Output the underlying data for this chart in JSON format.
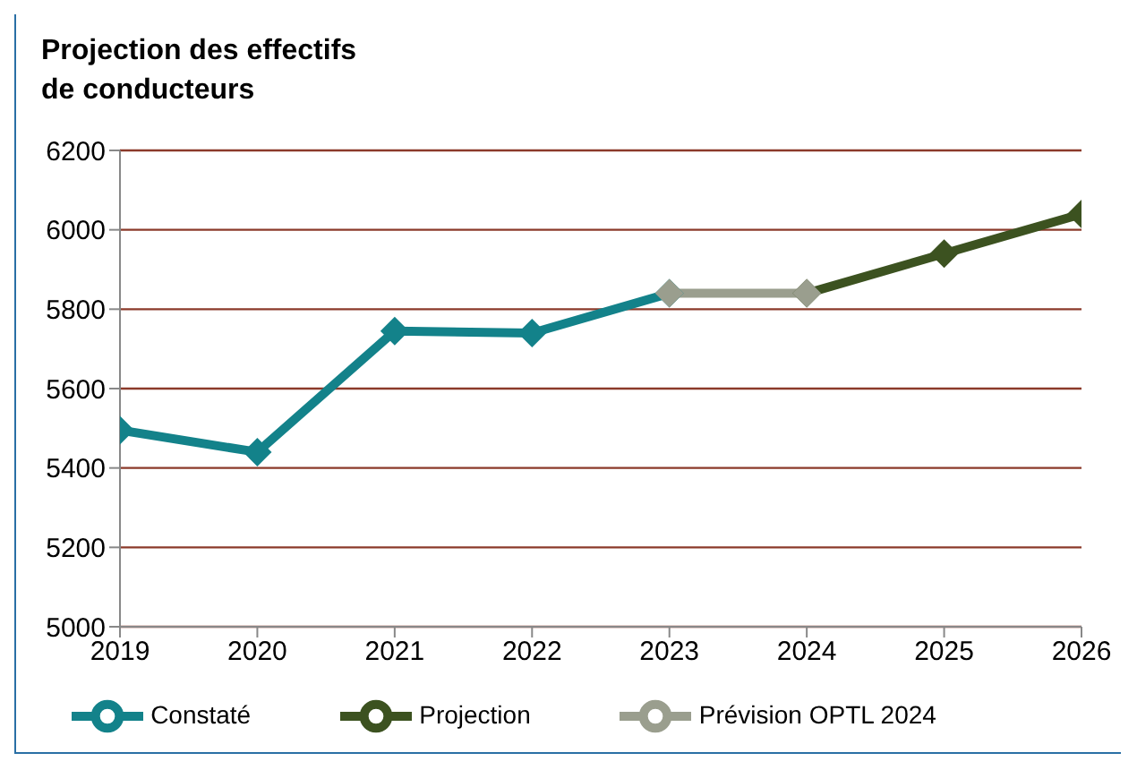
{
  "chart_data": {
    "type": "line",
    "title": "Projection des effectifs\nde conducteurs",
    "series": [
      {
        "name": "Constaté",
        "color": "#13828a",
        "x": [
          2019,
          2020,
          2021,
          2022,
          2023
        ],
        "values": [
          5495,
          5440,
          5745,
          5740,
          5840
        ]
      },
      {
        "name": "Projection",
        "color": "#3c5220",
        "x": [
          2024,
          2025,
          2026
        ],
        "values": [
          5840,
          5940,
          6040
        ]
      },
      {
        "name": "Prévision OPTL 2024",
        "color": "#9a9e8e",
        "x": [
          2023,
          2024
        ],
        "values": [
          5840,
          5840
        ]
      }
    ],
    "xlim": [
      2019,
      2026
    ],
    "xticks": [
      2019,
      2020,
      2021,
      2022,
      2023,
      2024,
      2025,
      2026
    ],
    "ylim": [
      5000,
      6200
    ],
    "yticks": [
      5000,
      5200,
      5400,
      5600,
      5800,
      6000,
      6200
    ],
    "grid": "y",
    "legend": "bottom",
    "marker": "diamond",
    "line_style": "solid"
  }
}
